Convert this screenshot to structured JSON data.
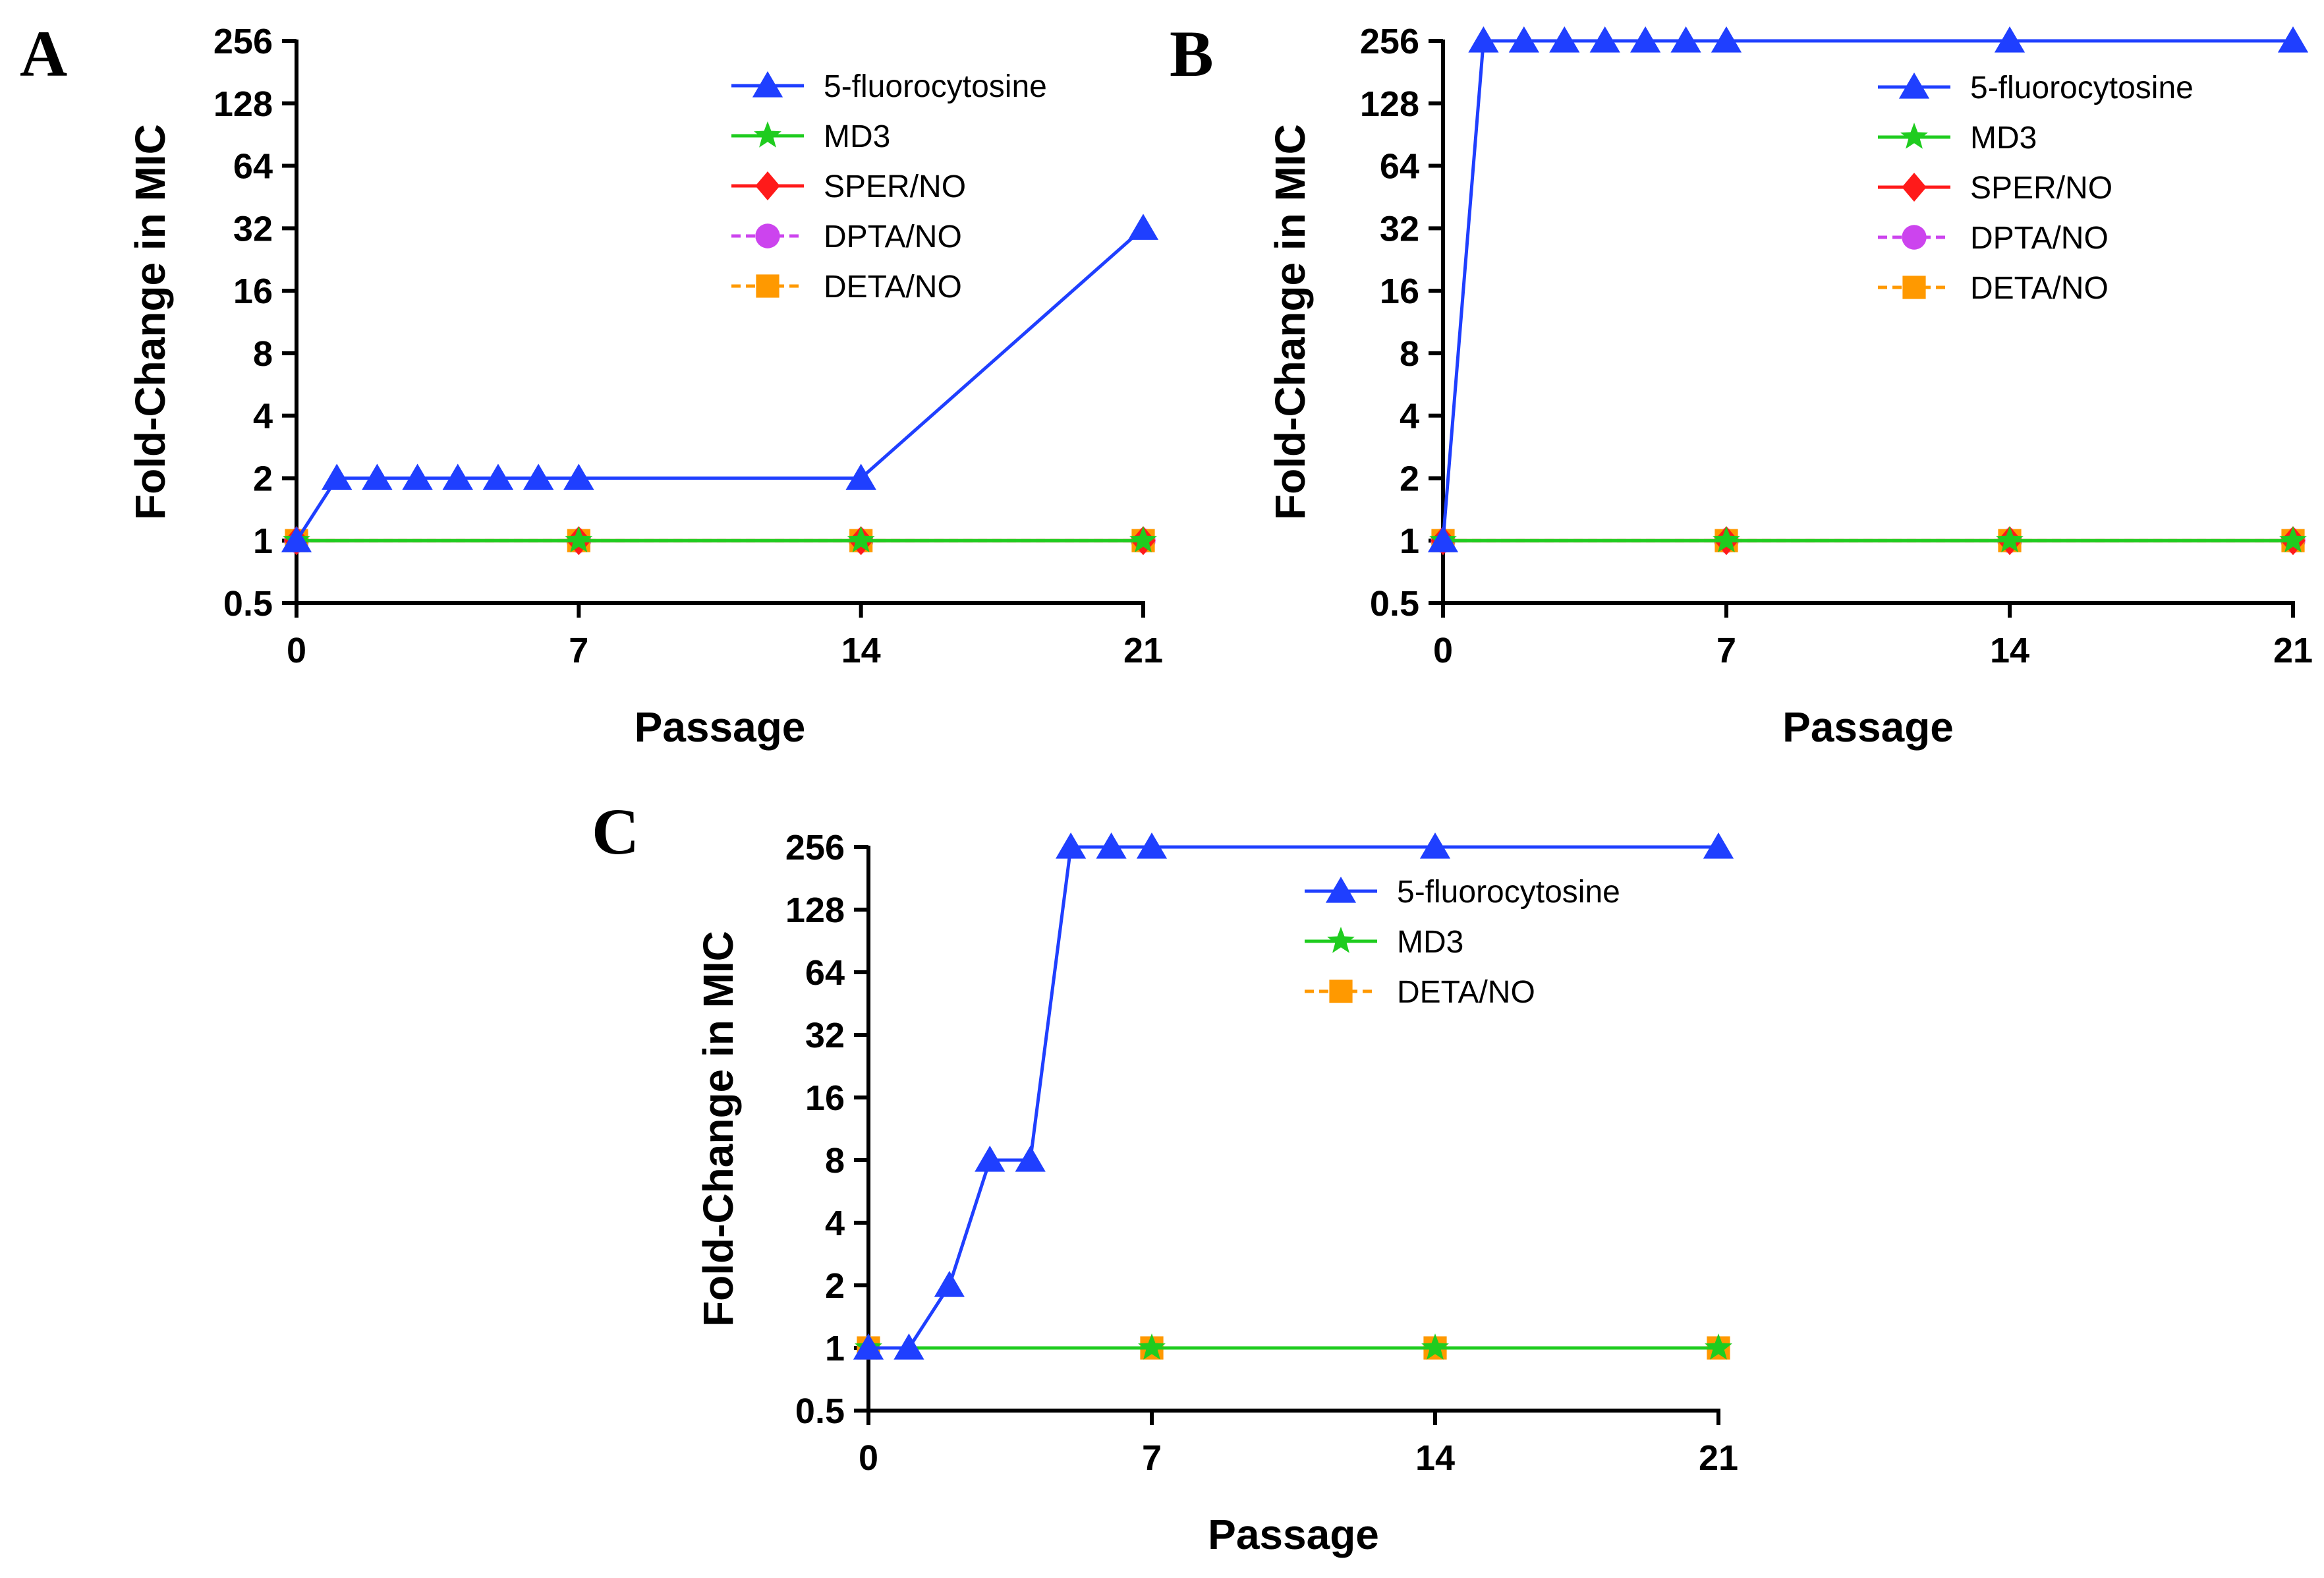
{
  "colors": {
    "fluoro": "#1f3fff",
    "md3": "#1fcc1f",
    "sper": "#ff1a1a",
    "dpta": "#cc44ee",
    "deta": "#ff9900",
    "axis": "#000000"
  },
  "chart_data": [
    {
      "type": "line",
      "panel": "A",
      "xlabel": "Passage",
      "ylabel": "Fold-Change in MIC",
      "yscale": "log2",
      "ylim": [
        0.5,
        256
      ],
      "yticks": [
        "0.5",
        "1",
        "2",
        "4",
        "8",
        "16",
        "32",
        "64",
        "128",
        "256"
      ],
      "xlim": [
        0,
        21
      ],
      "xticks": [
        "0",
        "7",
        "14",
        "21"
      ],
      "legend_position": "top-right",
      "series": [
        {
          "name": "5-fluorocytosine",
          "color_key": "fluoro",
          "marker": "triangle",
          "dashed": false,
          "x": [
            0,
            1,
            2,
            3,
            4,
            5,
            6,
            7,
            14,
            21
          ],
          "values": [
            1,
            2,
            2,
            2,
            2,
            2,
            2,
            2,
            2,
            32
          ]
        },
        {
          "name": "MD3",
          "color_key": "md3",
          "marker": "star",
          "dashed": false,
          "x": [
            0,
            7,
            14,
            21
          ],
          "values": [
            1,
            1,
            1,
            1
          ]
        },
        {
          "name": "SPER/NO",
          "color_key": "sper",
          "marker": "diamond",
          "dashed": false,
          "x": [
            0,
            7,
            14,
            21
          ],
          "values": [
            1,
            1,
            1,
            1
          ]
        },
        {
          "name": "DPTA/NO",
          "color_key": "dpta",
          "marker": "circle",
          "dashed": true,
          "x": [
            0,
            7,
            14,
            21
          ],
          "values": [
            1,
            1,
            1,
            1
          ]
        },
        {
          "name": "DETA/NO",
          "color_key": "deta",
          "marker": "square",
          "dashed": true,
          "x": [
            0,
            7,
            14,
            21
          ],
          "values": [
            1,
            1,
            1,
            1
          ]
        }
      ]
    },
    {
      "type": "line",
      "panel": "B",
      "xlabel": "Passage",
      "ylabel": "Fold-Change in MIC",
      "yscale": "log2",
      "ylim": [
        0.5,
        256
      ],
      "yticks": [
        "0.5",
        "1",
        "2",
        "4",
        "8",
        "16",
        "32",
        "64",
        "128",
        "256"
      ],
      "xlim": [
        0,
        21
      ],
      "xticks": [
        "0",
        "7",
        "14",
        "21"
      ],
      "legend_position": "top-right",
      "series": [
        {
          "name": "5-fluorocytosine",
          "color_key": "fluoro",
          "marker": "triangle",
          "dashed": false,
          "x": [
            0,
            1,
            2,
            3,
            4,
            5,
            6,
            7,
            14,
            21
          ],
          "values": [
            1,
            256,
            256,
            256,
            256,
            256,
            256,
            256,
            256,
            256
          ]
        },
        {
          "name": "MD3",
          "color_key": "md3",
          "marker": "star",
          "dashed": false,
          "x": [
            0,
            7,
            14,
            21
          ],
          "values": [
            1,
            1,
            1,
            1
          ]
        },
        {
          "name": "SPER/NO",
          "color_key": "sper",
          "marker": "diamond",
          "dashed": false,
          "x": [
            0,
            7,
            14,
            21
          ],
          "values": [
            1,
            1,
            1,
            1
          ]
        },
        {
          "name": "DPTA/NO",
          "color_key": "dpta",
          "marker": "circle",
          "dashed": true,
          "x": [
            0,
            7,
            14,
            21
          ],
          "values": [
            1,
            1,
            1,
            1
          ]
        },
        {
          "name": "DETA/NO",
          "color_key": "deta",
          "marker": "square",
          "dashed": true,
          "x": [
            0,
            7,
            14,
            21
          ],
          "values": [
            1,
            1,
            1,
            1
          ]
        }
      ]
    },
    {
      "type": "line",
      "panel": "C",
      "xlabel": "Passage",
      "ylabel": "Fold-Change in MIC",
      "yscale": "log2",
      "ylim": [
        0.5,
        256
      ],
      "yticks": [
        "0.5",
        "1",
        "2",
        "4",
        "8",
        "16",
        "32",
        "64",
        "128",
        "256"
      ],
      "xlim": [
        0,
        21
      ],
      "xticks": [
        "0",
        "7",
        "14",
        "21"
      ],
      "legend_position": "top-right",
      "series": [
        {
          "name": "5-fluorocytosine",
          "color_key": "fluoro",
          "marker": "triangle",
          "dashed": false,
          "x": [
            0,
            1,
            2,
            3,
            4,
            5,
            6,
            7,
            14,
            21
          ],
          "values": [
            1,
            1,
            2,
            8,
            8,
            256,
            256,
            256,
            256,
            256
          ]
        },
        {
          "name": "MD3",
          "color_key": "md3",
          "marker": "star",
          "dashed": false,
          "x": [
            0,
            7,
            14,
            21
          ],
          "values": [
            1,
            1,
            1,
            1
          ]
        },
        {
          "name": "DETA/NO",
          "color_key": "deta",
          "marker": "square",
          "dashed": true,
          "x": [
            0,
            7,
            14,
            21
          ],
          "values": [
            1,
            1,
            1,
            1
          ]
        }
      ]
    }
  ]
}
